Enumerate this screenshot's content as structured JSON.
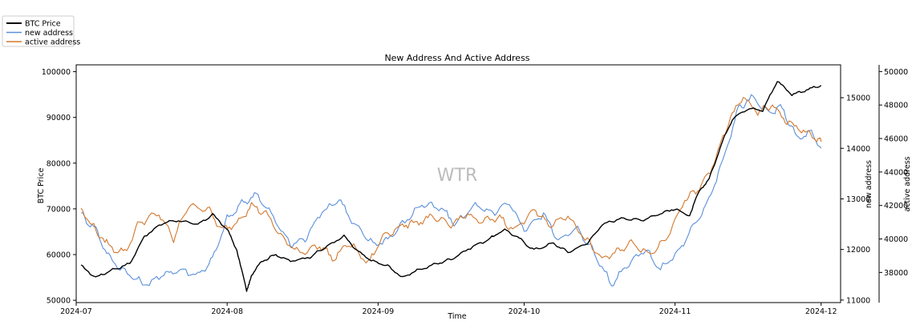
{
  "chart_data": {
    "type": "line",
    "title": "New Address And Active Address",
    "xlabel": "Time",
    "watermark": "WTR",
    "x_ticks": [
      "2024-07",
      "2024-08",
      "2024-09",
      "2024-10",
      "2024-11",
      "2024-12"
    ],
    "x_range": [
      "2024-07-01",
      "2024-12-05"
    ],
    "axes": {
      "left": {
        "label": "BTC Price",
        "ylim": [
          49500,
          101500
        ],
        "ticks": [
          50000,
          60000,
          70000,
          80000,
          90000,
          100000
        ]
      },
      "right1": {
        "label": "new address",
        "ylim": [
          10950,
          15650
        ],
        "ticks": [
          11000,
          12000,
          13000,
          14000,
          15000
        ]
      },
      "right2": {
        "label": "active address",
        "ylim": [
          36200,
          50400
        ],
        "ticks": [
          38000,
          40000,
          42000,
          44000,
          46000,
          48000,
          50000
        ]
      }
    },
    "series": [
      {
        "name": "BTC Price",
        "axis": "left",
        "color": "#000000",
        "dates": [
          "2024-07-02",
          "2024-07-05",
          "2024-07-08",
          "2024-07-12",
          "2024-07-15",
          "2024-07-19",
          "2024-07-22",
          "2024-07-26",
          "2024-07-29",
          "2024-08-01",
          "2024-08-03",
          "2024-08-05",
          "2024-08-06",
          "2024-08-08",
          "2024-08-11",
          "2024-08-14",
          "2024-08-18",
          "2024-08-21",
          "2024-08-25",
          "2024-08-28",
          "2024-08-31",
          "2024-09-03",
          "2024-09-06",
          "2024-09-09",
          "2024-09-13",
          "2024-09-16",
          "2024-09-20",
          "2024-09-24",
          "2024-09-27",
          "2024-09-30",
          "2024-10-03",
          "2024-10-07",
          "2024-10-10",
          "2024-10-14",
          "2024-10-17",
          "2024-10-21",
          "2024-10-25",
          "2024-10-29",
          "2024-11-01",
          "2024-11-04",
          "2024-11-06",
          "2024-11-08",
          "2024-11-11",
          "2024-11-13",
          "2024-11-16",
          "2024-11-19",
          "2024-11-22",
          "2024-11-25",
          "2024-11-28",
          "2024-12-01"
        ],
        "values": [
          57500,
          55000,
          56500,
          58000,
          64000,
          67000,
          67500,
          66500,
          68800,
          65500,
          61000,
          52000,
          55500,
          58500,
          60000,
          58500,
          59500,
          61500,
          64000,
          60500,
          58500,
          57500,
          55000,
          56500,
          58000,
          59000,
          61500,
          63500,
          65500,
          63500,
          61000,
          62500,
          60500,
          62500,
          66500,
          68000,
          67500,
          69000,
          70000,
          68500,
          74000,
          76500,
          85500,
          90000,
          92000,
          91500,
          98000,
          95000,
          96000,
          97000
        ]
      },
      {
        "name": "new address",
        "axis": "right1",
        "color": "#5b8fd9",
        "dates": [
          "2024-07-02",
          "2024-07-05",
          "2024-07-08",
          "2024-07-12",
          "2024-07-15",
          "2024-07-19",
          "2024-07-22",
          "2024-07-26",
          "2024-07-29",
          "2024-08-01",
          "2024-08-04",
          "2024-08-07",
          "2024-08-10",
          "2024-08-14",
          "2024-08-17",
          "2024-08-20",
          "2024-08-24",
          "2024-08-27",
          "2024-08-31",
          "2024-09-03",
          "2024-09-07",
          "2024-09-10",
          "2024-09-14",
          "2024-09-17",
          "2024-09-21",
          "2024-09-24",
          "2024-09-28",
          "2024-10-01",
          "2024-10-05",
          "2024-10-08",
          "2024-10-12",
          "2024-10-15",
          "2024-10-19",
          "2024-10-22",
          "2024-10-26",
          "2024-10-29",
          "2024-11-02",
          "2024-11-05",
          "2024-11-08",
          "2024-11-11",
          "2024-11-14",
          "2024-11-17",
          "2024-11-20",
          "2024-11-23",
          "2024-11-26",
          "2024-11-29",
          "2024-12-01"
        ],
        "values": [
          12700,
          12400,
          11800,
          11500,
          11300,
          11500,
          11600,
          11500,
          11800,
          12600,
          12900,
          13100,
          12700,
          12100,
          12200,
          12700,
          13000,
          12500,
          12100,
          12200,
          12600,
          12900,
          12800,
          12500,
          12900,
          12700,
          12900,
          12400,
          12700,
          12200,
          12400,
          12000,
          11300,
          11700,
          12000,
          11600,
          12000,
          12500,
          13000,
          13800,
          14800,
          15000,
          14700,
          14800,
          14200,
          14300,
          14000
        ]
      },
      {
        "name": "active address",
        "axis": "right2",
        "color": "#d2782e",
        "dates": [
          "2024-07-02",
          "2024-07-05",
          "2024-07-08",
          "2024-07-11",
          "2024-07-14",
          "2024-07-18",
          "2024-07-21",
          "2024-07-24",
          "2024-07-28",
          "2024-07-31",
          "2024-08-03",
          "2024-08-06",
          "2024-08-09",
          "2024-08-13",
          "2024-08-16",
          "2024-08-20",
          "2024-08-23",
          "2024-08-26",
          "2024-08-30",
          "2024-09-02",
          "2024-09-06",
          "2024-09-09",
          "2024-09-12",
          "2024-09-16",
          "2024-09-19",
          "2024-09-22",
          "2024-09-26",
          "2024-09-29",
          "2024-10-03",
          "2024-10-06",
          "2024-10-10",
          "2024-10-13",
          "2024-10-17",
          "2024-10-20",
          "2024-10-23",
          "2024-10-27",
          "2024-10-30",
          "2024-11-03",
          "2024-11-06",
          "2024-11-09",
          "2024-11-12",
          "2024-11-15",
          "2024-11-18",
          "2024-11-21",
          "2024-11-24",
          "2024-11-27",
          "2024-11-30",
          "2024-12-01"
        ],
        "values": [
          41800,
          40500,
          39500,
          39200,
          41000,
          41500,
          40000,
          42000,
          41800,
          40500,
          41000,
          42000,
          41500,
          39800,
          39200,
          39600,
          38800,
          39800,
          38500,
          40200,
          40800,
          41000,
          41300,
          40800,
          41500,
          41000,
          41300,
          40500,
          41800,
          40800,
          41400,
          40200,
          38800,
          39200,
          39800,
          39100,
          40000,
          42300,
          43000,
          44500,
          47000,
          48500,
          47500,
          48000,
          47000,
          46500,
          46000,
          45800
        ]
      }
    ],
    "legend": [
      "BTC Price",
      "new address",
      "active address"
    ],
    "legend_location": "top-left outside",
    "grid": false
  }
}
